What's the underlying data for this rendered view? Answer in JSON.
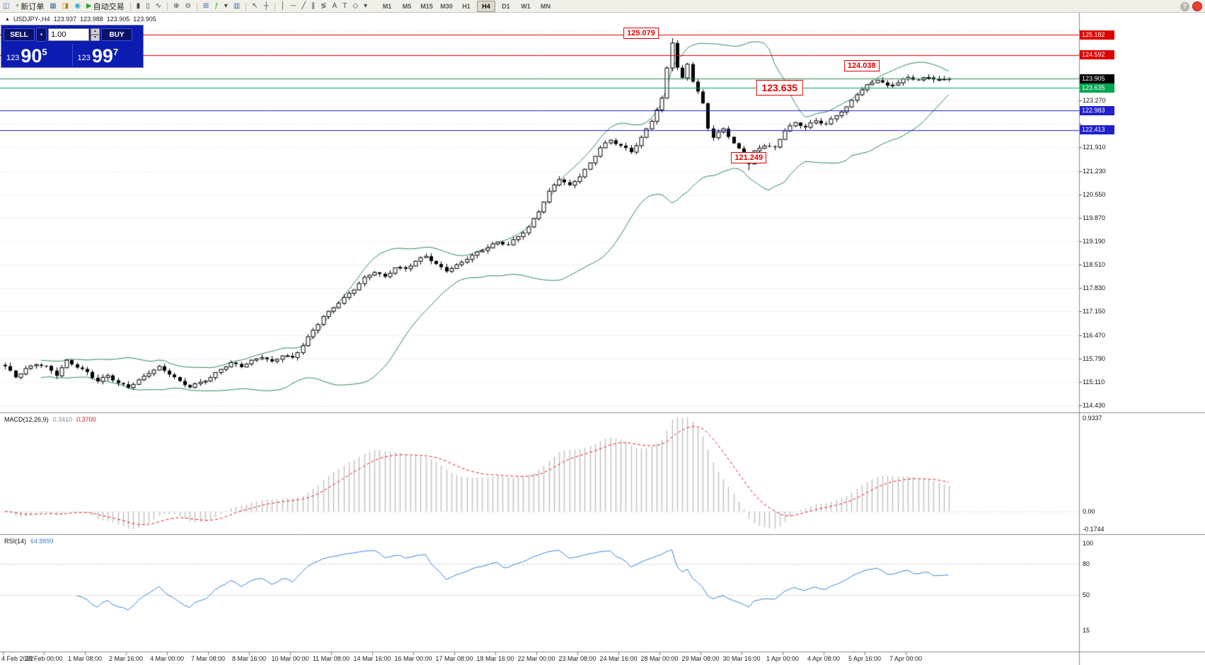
{
  "toolbar": {
    "help_label": "?",
    "groups": [
      {
        "name": "file-group",
        "items": [
          {
            "name": "new-chart-icon",
            "glyph": "◫",
            "color": "#4a6fa5"
          },
          {
            "name": "new-order-button",
            "glyph": "+",
            "color": "#1fae1f",
            "label": "新订单"
          },
          {
            "name": "chart-profiles-icon",
            "glyph": "▦",
            "color": "#4a6fa5"
          },
          {
            "name": "data-window-icon",
            "glyph": "◨",
            "color": "#b8860b"
          },
          {
            "name": "sound-icon",
            "glyph": "◉",
            "color": "#18b0c8"
          },
          {
            "name": "autotrading-button",
            "glyph": "▶",
            "color": "#1fae1f",
            "label": "自动交易"
          }
        ]
      },
      {
        "name": "chart-mode-group",
        "items": [
          {
            "name": "bar-chart-icon",
            "glyph": "▮",
            "color": "#444444"
          },
          {
            "name": "candlestick-chart-icon",
            "glyph": "▯",
            "color": "#444444"
          },
          {
            "name": "line-chart-icon",
            "glyph": "∿",
            "color": "#444444"
          }
        ]
      },
      {
        "name": "zoom-group",
        "items": [
          {
            "name": "zoom-in-icon",
            "glyph": "⊕",
            "color": "#444444"
          },
          {
            "name": "zoom-out-icon",
            "glyph": "⊖",
            "color": "#444444"
          }
        ]
      },
      {
        "name": "window-group",
        "items": [
          {
            "name": "tile-windows-icon",
            "glyph": "⊞",
            "color": "#4a6fa5"
          },
          {
            "name": "indicators-icon",
            "glyph": "ƒ",
            "color": "#1fae1f"
          },
          {
            "name": "indicators-dropdown",
            "glyph": "▾",
            "color": "#444444"
          },
          {
            "name": "templates-icon",
            "glyph": "▥",
            "color": "#4a6fa5"
          }
        ]
      },
      {
        "name": "pointer-group",
        "items": [
          {
            "name": "cursor-icon",
            "glyph": "↖",
            "color": "#444444"
          },
          {
            "name": "crosshair-icon",
            "glyph": "┼",
            "color": "#444444"
          }
        ]
      },
      {
        "name": "objects-group",
        "items": [
          {
            "name": "vertical-line-icon",
            "glyph": "│",
            "color": "#444444"
          },
          {
            "name": "horizontal-line-icon",
            "glyph": "─",
            "color": "#444444"
          },
          {
            "name": "trendline-icon",
            "glyph": "╱",
            "color": "#444444"
          },
          {
            "name": "channel-icon",
            "glyph": "∥",
            "color": "#444444"
          },
          {
            "name": "fibonacci-icon",
            "glyph": "≶",
            "color": "#444444"
          },
          {
            "name": "text-icon",
            "glyph": "A",
            "color": "#444444"
          },
          {
            "name": "label-icon",
            "glyph": "T",
            "color": "#444444"
          },
          {
            "name": "shapes-icon",
            "glyph": "◇",
            "color": "#444444"
          },
          {
            "name": "shapes-dropdown",
            "glyph": "▾",
            "color": "#444444"
          }
        ]
      }
    ],
    "timeframes": [
      "M1",
      "M5",
      "M15",
      "M30",
      "H1",
      "H4",
      "D1",
      "W1",
      "MN"
    ],
    "active_timeframe": "H4"
  },
  "chart_title": {
    "direction": "▲",
    "symbol": "USDJPY-,H4",
    "open": "123.937",
    "high": "123.988",
    "low": "123.905",
    "close": "123.905"
  },
  "one_click": {
    "sell_label": "SELL",
    "buy_label": "BUY",
    "volume": "1.00",
    "sell_prefix": "123",
    "sell_big": "90",
    "sell_sup": "5",
    "buy_prefix": "123",
    "buy_big": "99",
    "buy_sup": "7"
  },
  "chart_data": [
    {
      "type": "candlestick",
      "title": "USDJPY-,H4",
      "timeframe": "H4",
      "bars_total": 185,
      "bars_per_label": 8,
      "x_labels": [
        "4 Feb 2022",
        "28 Feb 00:00",
        "1 Mar 08:00",
        "2 Mar 16:00",
        "4 Mar 00:00",
        "7 Mar 08:00",
        "8 Mar 16:00",
        "10 Mar 00:00",
        "11 Mar 08:00",
        "14 Mar 16:00",
        "16 Mar 00:00",
        "17 Mar 08:00",
        "18 Mar 16:00",
        "22 Mar 00:00",
        "23 Mar 08:00",
        "24 Mar 16:00",
        "28 Mar 00:00",
        "29 Mar 08:00",
        "30 Mar 16:00",
        "1 Apr 00:00",
        "4 Apr 08:00",
        "5 Apr 16:00",
        "7 Apr 00:00"
      ],
      "y_grid": {
        "start": 114.43,
        "step": 0.68,
        "count": 17
      },
      "y_ticks_plain": [
        "123.270",
        "121.910",
        "121.230",
        "120.550",
        "119.870",
        "119.190",
        "118.510",
        "117.830",
        "117.150",
        "116.470",
        "115.790",
        "115.110",
        "114.430"
      ],
      "close_anchors": [
        [
          0,
          115.55
        ],
        [
          2,
          115.25
        ],
        [
          4,
          115.5
        ],
        [
          6,
          115.65
        ],
        [
          8,
          115.55
        ],
        [
          10,
          115.3
        ],
        [
          12,
          115.7
        ],
        [
          14,
          115.55
        ],
        [
          16,
          115.4
        ],
        [
          18,
          115.15
        ],
        [
          20,
          115.3
        ],
        [
          22,
          115.05
        ],
        [
          24,
          114.95
        ],
        [
          26,
          115.15
        ],
        [
          28,
          115.4
        ],
        [
          30,
          115.55
        ],
        [
          32,
          115.35
        ],
        [
          34,
          115.1
        ],
        [
          36,
          114.95
        ],
        [
          38,
          115.1
        ],
        [
          40,
          115.25
        ],
        [
          42,
          115.5
        ],
        [
          44,
          115.65
        ],
        [
          46,
          115.55
        ],
        [
          48,
          115.7
        ],
        [
          50,
          115.85
        ],
        [
          52,
          115.7
        ],
        [
          54,
          115.9
        ],
        [
          56,
          115.8
        ],
        [
          58,
          116.15
        ],
        [
          60,
          116.6
        ],
        [
          62,
          117.0
        ],
        [
          64,
          117.3
        ],
        [
          66,
          117.55
        ],
        [
          68,
          117.8
        ],
        [
          70,
          118.1
        ],
        [
          72,
          118.3
        ],
        [
          74,
          118.15
        ],
        [
          76,
          118.45
        ],
        [
          78,
          118.4
        ],
        [
          80,
          118.6
        ],
        [
          82,
          118.75
        ],
        [
          84,
          118.5
        ],
        [
          86,
          118.35
        ],
        [
          88,
          118.5
        ],
        [
          90,
          118.7
        ],
        [
          92,
          118.85
        ],
        [
          94,
          119.0
        ],
        [
          96,
          119.15
        ],
        [
          98,
          119.1
        ],
        [
          100,
          119.35
        ],
        [
          102,
          119.6
        ],
        [
          104,
          120.05
        ],
        [
          106,
          120.6
        ],
        [
          108,
          121.0
        ],
        [
          110,
          120.8
        ],
        [
          112,
          121.1
        ],
        [
          114,
          121.45
        ],
        [
          116,
          121.9
        ],
        [
          118,
          122.1
        ],
        [
          120,
          121.95
        ],
        [
          122,
          121.8
        ],
        [
          124,
          122.2
        ],
        [
          126,
          122.7
        ],
        [
          128,
          123.3
        ],
        [
          129,
          124.2
        ],
        [
          130,
          124.95
        ],
        [
          131,
          124.2
        ],
        [
          132,
          123.9
        ],
        [
          133,
          124.35
        ],
        [
          134,
          123.85
        ],
        [
          136,
          123.2
        ],
        [
          137,
          122.5
        ],
        [
          138,
          122.2
        ],
        [
          140,
          122.45
        ],
        [
          142,
          122.0
        ],
        [
          144,
          121.7
        ],
        [
          145,
          121.45
        ],
        [
          146,
          121.8
        ],
        [
          148,
          122.0
        ],
        [
          150,
          121.9
        ],
        [
          152,
          122.4
        ],
        [
          154,
          122.6
        ],
        [
          156,
          122.5
        ],
        [
          158,
          122.7
        ],
        [
          160,
          122.6
        ],
        [
          162,
          122.85
        ],
        [
          164,
          123.05
        ],
        [
          166,
          123.45
        ],
        [
          168,
          123.7
        ],
        [
          170,
          123.9
        ],
        [
          172,
          123.7
        ],
        [
          174,
          123.8
        ],
        [
          176,
          123.92
        ],
        [
          178,
          123.85
        ],
        [
          180,
          123.95
        ],
        [
          182,
          123.88
        ],
        [
          184,
          123.905
        ]
      ],
      "spike": {
        "bar": 130,
        "high": 125.079
      },
      "dip": {
        "bar": 145,
        "low": 121.249
      },
      "last_close": 123.905,
      "bollinger": {
        "period": 20,
        "deviation": 2,
        "color": "#2e8b57"
      },
      "candle_up_fill": "#ffffff",
      "candle_down_fill": "#000000",
      "candle_border": "#000000",
      "hlines": [
        {
          "price": 125.182,
          "label": "125.182",
          "line_color": "#dd0000",
          "tag_bg": "#dd0000"
        },
        {
          "price": 124.592,
          "label": "124.592",
          "line_color": "#dd0000",
          "tag_bg": "#dd0000"
        },
        {
          "price": 123.905,
          "label": "123.905",
          "line_color": "#2e8b57",
          "tag_bg": "#000000"
        },
        {
          "price": 123.635,
          "label": "123.635",
          "line_color": "#00a651",
          "tag_bg": "#00a651"
        },
        {
          "price": 122.983,
          "label": "122.983",
          "line_color": "#2020cc",
          "tag_bg": "#2020cc"
        },
        {
          "price": 122.413,
          "label": "122.413",
          "line_color": "#2020cc",
          "tag_bg": "#2020cc"
        }
      ],
      "callouts": [
        {
          "text": "125.079",
          "bar": 124,
          "price": 125.22,
          "size": "normal"
        },
        {
          "text": "123.635",
          "bar": 151,
          "price": 123.635,
          "size": "large"
        },
        {
          "text": "124.038",
          "bar": 167,
          "price": 124.27,
          "size": "normal"
        },
        {
          "text": "121.249",
          "bar": 145,
          "price": 121.62,
          "size": "normal"
        }
      ]
    },
    {
      "type": "macd",
      "label": "MACD(12,26,9)",
      "params": [
        12,
        26,
        9
      ],
      "current_main": "0.3410",
      "current_signal": "0.3700",
      "scale_labels": [
        "0.9337",
        "0.00",
        "-0.1744"
      ],
      "scale_max": 0.9337,
      "scale_min": -0.1744,
      "histogram_color": "#c2c2c2",
      "signal_color": "#e02020"
    },
    {
      "type": "rsi",
      "label": "RSI(14)",
      "period": 14,
      "current": "64.8899",
      "scale_labels": [
        "100",
        "80",
        "50",
        "15"
      ],
      "levels": [
        80,
        50
      ],
      "line_color": "#3a87d6"
    }
  ]
}
